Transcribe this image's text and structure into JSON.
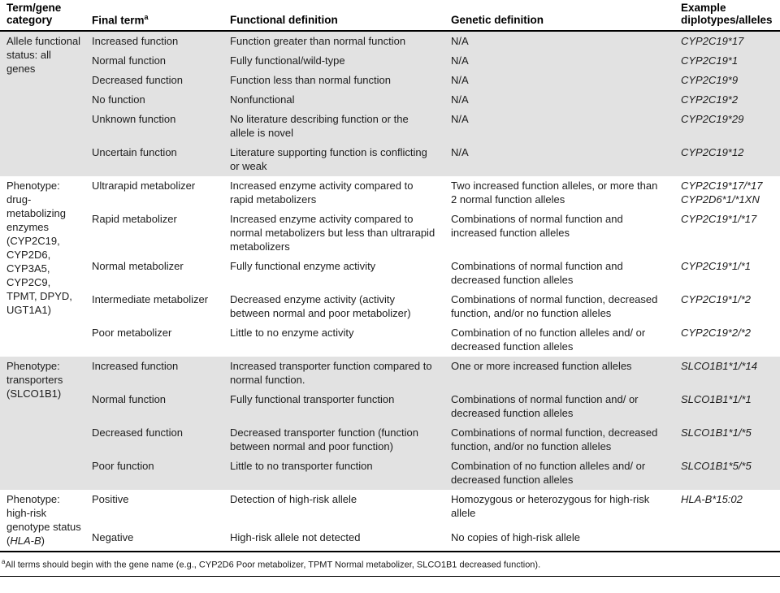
{
  "table": {
    "headers": {
      "term_gene_category": "Term/gene category",
      "final_term": "Final term",
      "final_term_sup": "a",
      "functional_definition": "Functional definition",
      "genetic_definition": "Genetic definition",
      "example": "Example diplotypes/alleles"
    },
    "sections": [
      {
        "category": "Allele functional status: all genes",
        "rows": [
          {
            "term": "Increased function",
            "functional": "Function greater than normal function",
            "genetic": "N/A",
            "example": "CYP2C19*17"
          },
          {
            "term": "Normal function",
            "functional": "Fully functional/wild-type",
            "genetic": "N/A",
            "example": "CYP2C19*1"
          },
          {
            "term": "Decreased function",
            "functional": "Function less than normal function",
            "genetic": "N/A",
            "example": "CYP2C19*9"
          },
          {
            "term": "No function",
            "functional": "Nonfunctional",
            "genetic": "N/A",
            "example": "CYP2C19*2"
          },
          {
            "term": "Unknown function",
            "functional": "No literature describing function or the allele is novel",
            "genetic": "N/A",
            "example": "CYP2C19*29"
          },
          {
            "term": "Uncertain function",
            "functional": "Literature supporting function is conflicting or weak",
            "genetic": "N/A",
            "example": "CYP2C19*12"
          }
        ]
      },
      {
        "category": "Phenotype: drug-metabolizing enzymes (CYP2C19, CYP2D6, CYP3A5, CYP2C9, TPMT, DPYD, UGT1A1)",
        "rows": [
          {
            "term": "Ultrarapid metabolizer",
            "functional": "Increased enzyme activity compared to rapid metabolizers",
            "genetic": "Two increased function alleles, or more than 2 normal function alleles",
            "example": "CYP2C19*17/*17\nCYP2D6*1/*1XN"
          },
          {
            "term": "Rapid metabolizer",
            "functional": "Increased enzyme activity compared to normal metabolizers but less than ultrarapid metabolizers",
            "genetic": "Combinations of normal function and increased function alleles",
            "example": "CYP2C19*1/*17"
          },
          {
            "term": "Normal metabolizer",
            "functional": "Fully functional enzyme activity",
            "genetic": "Combinations of normal function and decreased function alleles",
            "example": "CYP2C19*1/*1"
          },
          {
            "term": "Intermediate metabolizer",
            "functional": "Decreased enzyme activity (activity between normal and poor metabolizer)",
            "genetic": "Combinations of normal function, decreased function, and/or no function alleles",
            "example": "CYP2C19*1/*2"
          },
          {
            "term": "Poor metabolizer",
            "functional": "Little to no enzyme activity",
            "genetic": "Combination of no function alleles and/ or decreased function alleles",
            "example": "CYP2C19*2/*2"
          }
        ]
      },
      {
        "category": "Phenotype: transporters (SLCO1B1)",
        "rows": [
          {
            "term": "Increased function",
            "functional": "Increased transporter function compared to normal function.",
            "genetic": "One or more increased function alleles",
            "example": "SLCO1B1*1/*14"
          },
          {
            "term": "Normal function",
            "functional": "Fully functional transporter function",
            "genetic": "Combinations of normal function and/ or decreased function alleles",
            "example": "SLCO1B1*1/*1"
          },
          {
            "term": "Decreased function",
            "functional": "Decreased transporter function (function between normal and poor function)",
            "genetic": "Combinations of normal function, decreased function, and/or no function alleles",
            "example": "SLCO1B1*1/*5"
          },
          {
            "term": "Poor function",
            "functional": "Little to no transporter function",
            "genetic": "Combination of no function alleles and/ or decreased function alleles",
            "example": "SLCO1B1*5/*5"
          }
        ]
      },
      {
        "category_prefix": "Phenotype: high-risk genotype status (",
        "category_gene": "HLA-B",
        "category_suffix": ")",
        "rows": [
          {
            "term": "Positive",
            "functional": "Detection of high-risk allele",
            "genetic": "Homozygous or heterozygous for high-risk allele",
            "example": "HLA-B*15:02"
          },
          {
            "term": "Negative",
            "functional": "High-risk allele not detected",
            "genetic": "No copies of high-risk allele",
            "example": ""
          }
        ]
      }
    ],
    "footnote": {
      "marker": "a",
      "text": "All terms should begin with the gene name (e.g., CYP2D6 Poor metabolizer, TPMT Normal metabolizer, SLCO1B1 decreased function)."
    }
  },
  "colors": {
    "section_alt_bg": "#e2e2e2",
    "rule": "#000000",
    "text": "#1c1c1c"
  }
}
